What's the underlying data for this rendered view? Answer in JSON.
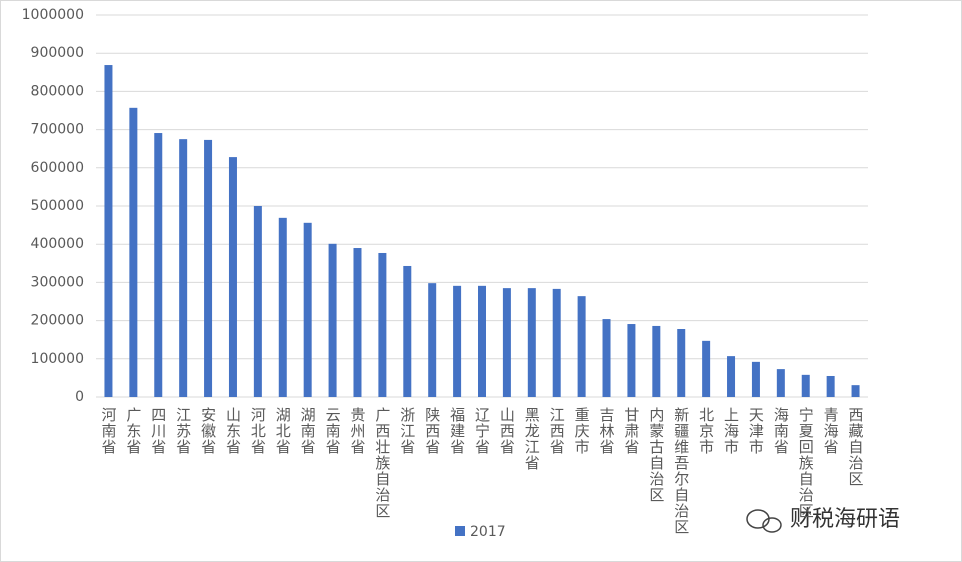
{
  "chart_data": {
    "type": "bar",
    "categories": [
      "河南省",
      "广东省",
      "四川省",
      "江苏省",
      "安徽省",
      "山东省",
      "河北省",
      "湖北省",
      "湖南省",
      "云南省",
      "贵州省",
      "广西壮族自治区",
      "浙江省",
      "陕西省",
      "福建省",
      "辽宁省",
      "山西省",
      "黑龙江省",
      "江西省",
      "重庆市",
      "吉林省",
      "甘肃省",
      "内蒙古自治区",
      "新疆维吾尔自治区",
      "北京市",
      "上海市",
      "天津市",
      "海南省",
      "宁夏回族自治区",
      "青海省",
      "西藏自治区"
    ],
    "series": [
      {
        "name": "2017",
        "color": "#4472c4",
        "values": [
          869000,
          757000,
          691000,
          675000,
          673000,
          628000,
          500000,
          469000,
          456000,
          401000,
          390000,
          377000,
          343000,
          298000,
          291000,
          291000,
          285000,
          285000,
          283000,
          264000,
          204000,
          191000,
          186000,
          178000,
          147000,
          107000,
          92000,
          73000,
          58000,
          55000,
          31000
        ]
      }
    ],
    "ylim": [
      0,
      1000000
    ],
    "yticks": [
      0,
      100000,
      200000,
      300000,
      400000,
      500000,
      600000,
      700000,
      800000,
      900000,
      1000000
    ],
    "grid": true,
    "legend": "bottom",
    "watermark": "财税海研语"
  }
}
